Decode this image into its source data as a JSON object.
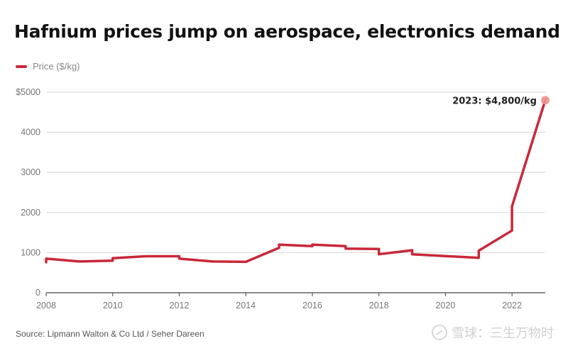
{
  "header": {
    "title": "Hafnium prices jump on aerospace, electronics demand"
  },
  "legend": {
    "label": "Price ($/kg)",
    "color": "#c8283a"
  },
  "footer": {
    "source": "Source: Lipmann Walton & Co Ltd / Seher Dareen"
  },
  "watermark": {
    "text": "雪球：三生万物时",
    "icon": "snowball-logo-icon"
  },
  "chart_data": {
    "type": "line",
    "title": "Hafnium prices jump on aerospace, electronics demand",
    "xlabel": "",
    "ylabel": "",
    "xlim": [
      2008,
      2023
    ],
    "ylim": [
      0,
      5000
    ],
    "x_ticks": [
      2008,
      2010,
      2012,
      2014,
      2016,
      2018,
      2020,
      2022
    ],
    "y_ticks": [
      0,
      1000,
      2000,
      3000,
      4000,
      5000
    ],
    "y_tick_labels": [
      "0",
      "1000",
      "2000",
      "3000",
      "4000",
      "$5000"
    ],
    "grid": true,
    "legend_position": "top-left",
    "series": [
      {
        "name": "Price ($/kg)",
        "color": "#c8283a",
        "x": [
          2008,
          2008,
          2009,
          2010,
          2010,
          2011,
          2012,
          2012,
          2013,
          2014,
          2015,
          2015,
          2016,
          2016,
          2017,
          2017,
          2018,
          2018,
          2019,
          2019,
          2021,
          2021,
          2022,
          2022,
          2023
        ],
        "y": [
          760,
          850,
          780,
          800,
          860,
          910,
          910,
          850,
          780,
          770,
          1120,
          1200,
          1160,
          1200,
          1160,
          1100,
          1090,
          960,
          1060,
          960,
          870,
          1050,
          1550,
          2150,
          4800
        ]
      }
    ],
    "annotations": [
      {
        "x": 2023,
        "y": 4800,
        "text": "2023: $4,800/kg"
      }
    ]
  }
}
